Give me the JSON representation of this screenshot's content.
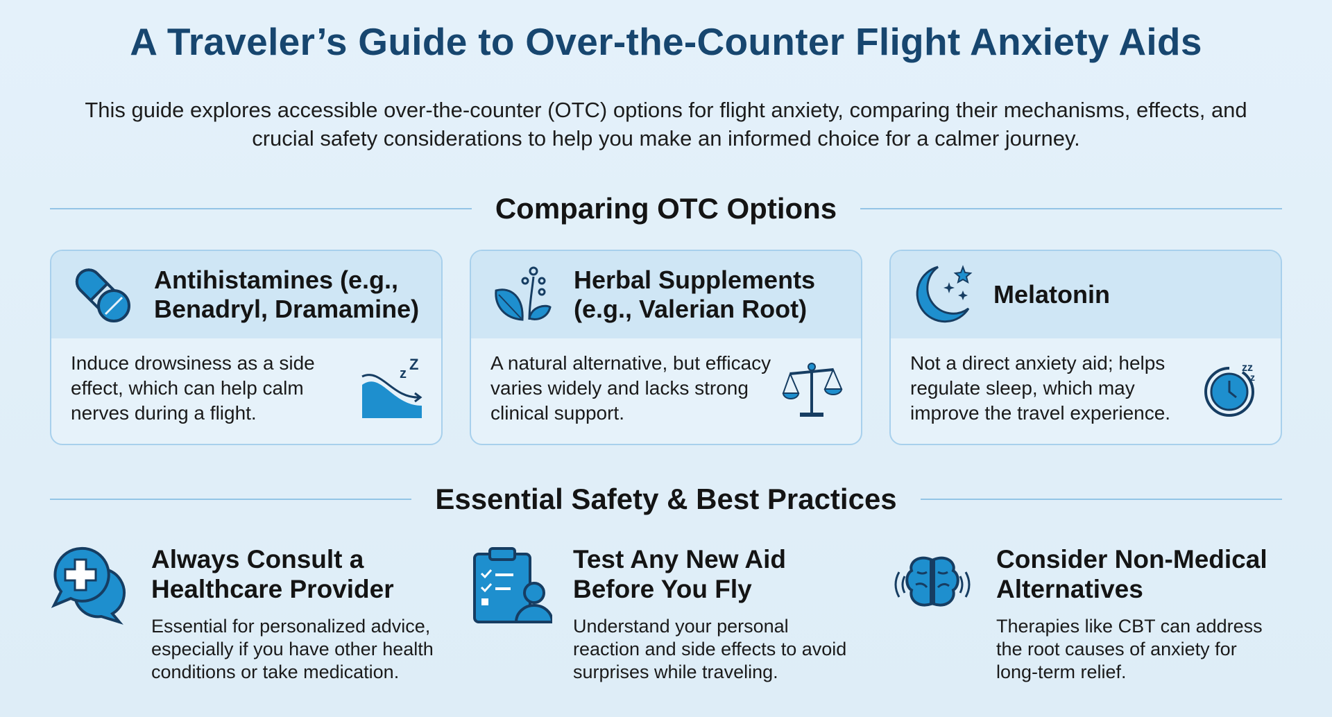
{
  "title": "A Traveler’s Guide to Over-the-Counter Flight Anxiety Aids",
  "subtitle": "This guide explores accessible over-the-counter (OTC) options for flight anxiety, comparing their mechanisms, effects, and crucial safety considerations to help you make an informed choice for a calmer journey.",
  "colors": {
    "title": "#17466f",
    "accent": "#1e8fce",
    "dark": "#163d62",
    "card_header": "#cfe6f5",
    "card_border": "#a8d0ec"
  },
  "sections": {
    "options": {
      "heading": "Comparing OTC Options",
      "cards": [
        {
          "icon": "pill-capsule-icon",
          "title": "Antihistamines (e.g., Benadryl, Dramamine)",
          "text": "Induce drowsiness as a side effect, which can help calm nerves during a flight.",
          "side_icon": "wave-sleep-icon"
        },
        {
          "icon": "herb-leaf-icon",
          "title": "Herbal Supplements (e.g., Valerian Root)",
          "text": "A natural alternative, but efficacy varies widely and lacks strong clinical support.",
          "side_icon": "balance-scale-icon"
        },
        {
          "icon": "moon-stars-icon",
          "title": "Melatonin",
          "text": "Not a direct anxiety aid; helps regulate sleep, which may improve the travel experience.",
          "side_icon": "sleep-clock-icon"
        }
      ]
    },
    "safety": {
      "heading": "Essential Safety & Best Practices",
      "items": [
        {
          "icon": "medical-chat-icon",
          "title": "Always Consult a Healthcare Provider",
          "text": "Essential for personalized advice, especially if you have other health conditions or take medication."
        },
        {
          "icon": "clipboard-checklist-icon",
          "title": "Test Any New Aid Before You Fly",
          "text": "Understand your personal reaction and side effects to avoid surprises while traveling."
        },
        {
          "icon": "brain-icon",
          "title": "Consider Non-Medical Alternatives",
          "text": "Therapies like CBT can address the root causes of anxiety for long-term relief."
        }
      ]
    }
  }
}
